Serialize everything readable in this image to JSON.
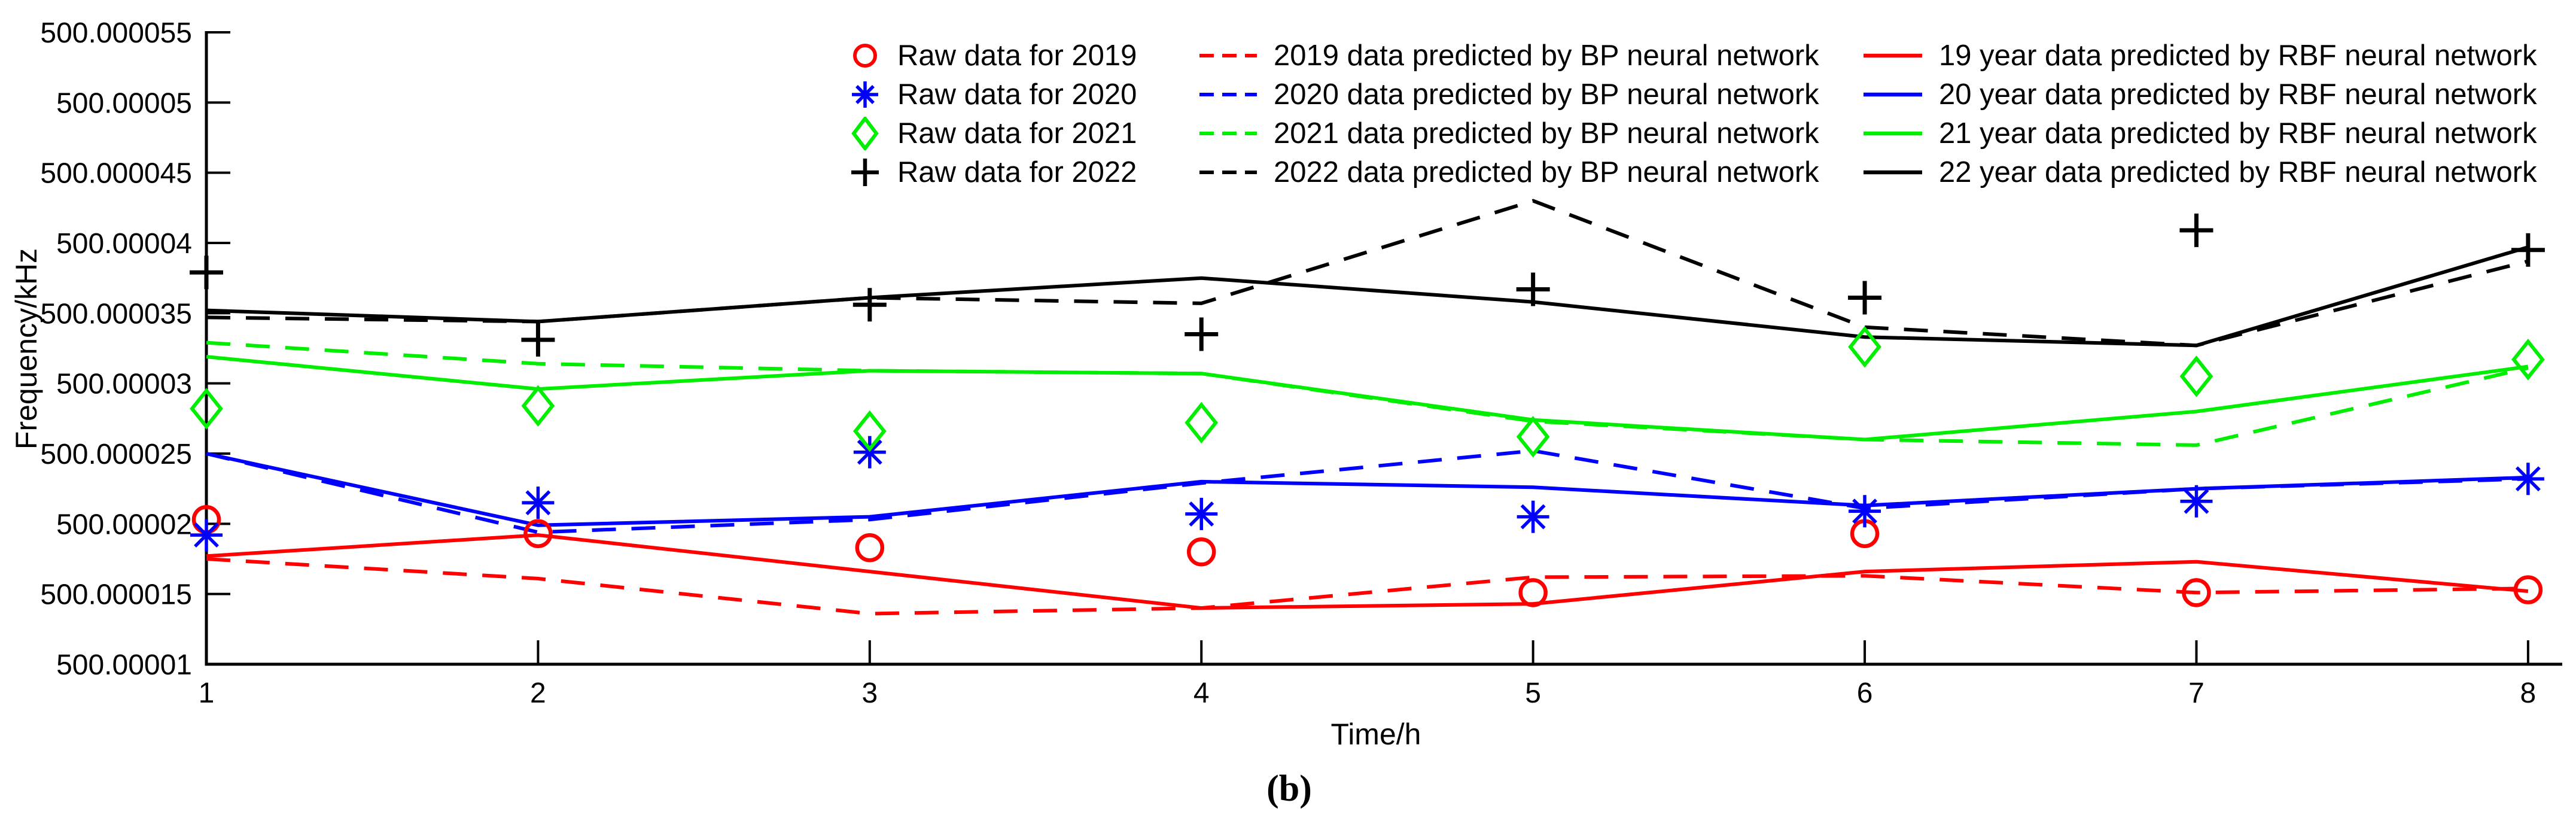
{
  "figure": {
    "caption": "(b)"
  },
  "chart_data": {
    "type": "line",
    "title": "",
    "xlabel": "Time/h",
    "ylabel": "Frequency/kHz",
    "caption": "(b)",
    "grid": false,
    "legend_position": "top-inside-three-columns",
    "x": [
      1,
      2,
      3,
      4,
      5,
      6,
      7,
      8
    ],
    "xlim": [
      1,
      8.103
    ],
    "ylim": [
      500.00001,
      500.000055
    ],
    "x_ticks": [
      {
        "v": 1,
        "label": "1"
      },
      {
        "v": 2,
        "label": "2"
      },
      {
        "v": 3,
        "label": "3"
      },
      {
        "v": 4,
        "label": "4"
      },
      {
        "v": 5,
        "label": "5"
      },
      {
        "v": 6,
        "label": "6"
      },
      {
        "v": 7,
        "label": "7"
      },
      {
        "v": 8,
        "label": "8"
      }
    ],
    "y_ticks": [
      {
        "v": 500.00001,
        "label": "500.00001"
      },
      {
        "v": 500.000015,
        "label": "500.000015"
      },
      {
        "v": 500.00002,
        "label": "500.00002"
      },
      {
        "v": 500.000025,
        "label": "500.000025"
      },
      {
        "v": 500.00003,
        "label": "500.00003"
      },
      {
        "v": 500.000035,
        "label": "500.000035"
      },
      {
        "v": 500.00004,
        "label": "500.00004"
      },
      {
        "v": 500.000045,
        "label": "500.000045"
      },
      {
        "v": 500.00005,
        "label": "500.00005"
      },
      {
        "v": 500.000055,
        "label": "500.000055"
      }
    ],
    "series": [
      {
        "id": "raw-2019",
        "legend": "Raw data for 2019",
        "color": "#ff0000",
        "kind": "scatter",
        "marker": "circle",
        "values": [
          500.0000203,
          500.0000193,
          500.0000183,
          500.000018,
          500.0000151,
          500.0000193,
          500.0000151,
          500.0000153
        ]
      },
      {
        "id": "raw-2020",
        "legend": "Raw data for 2020",
        "color": "#0000ff",
        "kind": "scatter",
        "marker": "asterisk",
        "values": [
          500.0000192,
          500.0000215,
          500.0000251,
          500.0000207,
          500.0000205,
          500.0000209,
          500.0000216,
          500.0000232
        ]
      },
      {
        "id": "raw-2021",
        "legend": "Raw data for 2021",
        "color": "#00ee00",
        "kind": "scatter",
        "marker": "diamond",
        "values": [
          500.0000282,
          500.0000284,
          500.0000266,
          500.0000272,
          500.0000262,
          500.0000326,
          500.0000305,
          500.0000317
        ]
      },
      {
        "id": "raw-2022",
        "legend": "Raw data for 2022",
        "color": "#000000",
        "kind": "scatter",
        "marker": "plus",
        "values": [
          500.0000379,
          500.0000331,
          500.0000356,
          500.0000335,
          500.0000367,
          500.0000361,
          500.0000409,
          500.0000395
        ]
      },
      {
        "id": "bp-2019",
        "legend": "2019 data predicted by BP neural network",
        "color": "#ff0000",
        "kind": "line",
        "dashed": true,
        "values": [
          500.0000175,
          500.0000161,
          500.0000136,
          500.000014,
          500.0000162,
          500.0000163,
          500.0000151,
          500.0000154
        ]
      },
      {
        "id": "bp-2020",
        "legend": "2020 data predicted by BP neural network",
        "color": "#0000ff",
        "kind": "line",
        "dashed": true,
        "values": [
          500.000025,
          500.0000194,
          500.0000203,
          500.0000229,
          500.0000252,
          500.0000211,
          500.0000225,
          500.0000232
        ]
      },
      {
        "id": "bp-2021",
        "legend": "2021 data predicted by BP neural network",
        "color": "#00ee00",
        "kind": "line",
        "dashed": true,
        "values": [
          500.0000329,
          500.0000314,
          500.0000309,
          500.0000307,
          500.0000273,
          500.000026,
          500.0000256,
          500.0000311
        ]
      },
      {
        "id": "bp-2022",
        "legend": "2022 data predicted by BP neural network",
        "color": "#000000",
        "kind": "line",
        "dashed": true,
        "values": [
          500.0000347,
          500.0000344,
          500.0000361,
          500.0000357,
          500.000043,
          500.000034,
          500.0000327,
          500.0000387
        ]
      },
      {
        "id": "rbf-2019",
        "legend": "19 year data predicted by RBF neural network",
        "color": "#ff0000",
        "kind": "line",
        "dashed": false,
        "values": [
          500.0000177,
          500.0000192,
          500.0000166,
          500.000014,
          500.0000143,
          500.0000166,
          500.0000173,
          500.0000152
        ]
      },
      {
        "id": "rbf-2020",
        "legend": "20 year data predicted by RBF neural network",
        "color": "#0000ff",
        "kind": "line",
        "dashed": false,
        "values": [
          500.000025,
          500.0000199,
          500.0000205,
          500.000023,
          500.0000226,
          500.0000213,
          500.0000225,
          500.0000233
        ]
      },
      {
        "id": "rbf-2021",
        "legend": "21 year data predicted by RBF neural network",
        "color": "#00ee00",
        "kind": "line",
        "dashed": false,
        "values": [
          500.0000319,
          500.0000296,
          500.0000309,
          500.0000307,
          500.0000274,
          500.000026,
          500.000028,
          500.0000312
        ]
      },
      {
        "id": "rbf-2022",
        "legend": "22 year data predicted by RBF neural network",
        "color": "#000000",
        "kind": "line",
        "dashed": false,
        "values": [
          500.0000352,
          500.0000344,
          500.0000361,
          500.0000375,
          500.0000358,
          500.0000333,
          500.0000327,
          500.0000397
        ]
      }
    ]
  }
}
